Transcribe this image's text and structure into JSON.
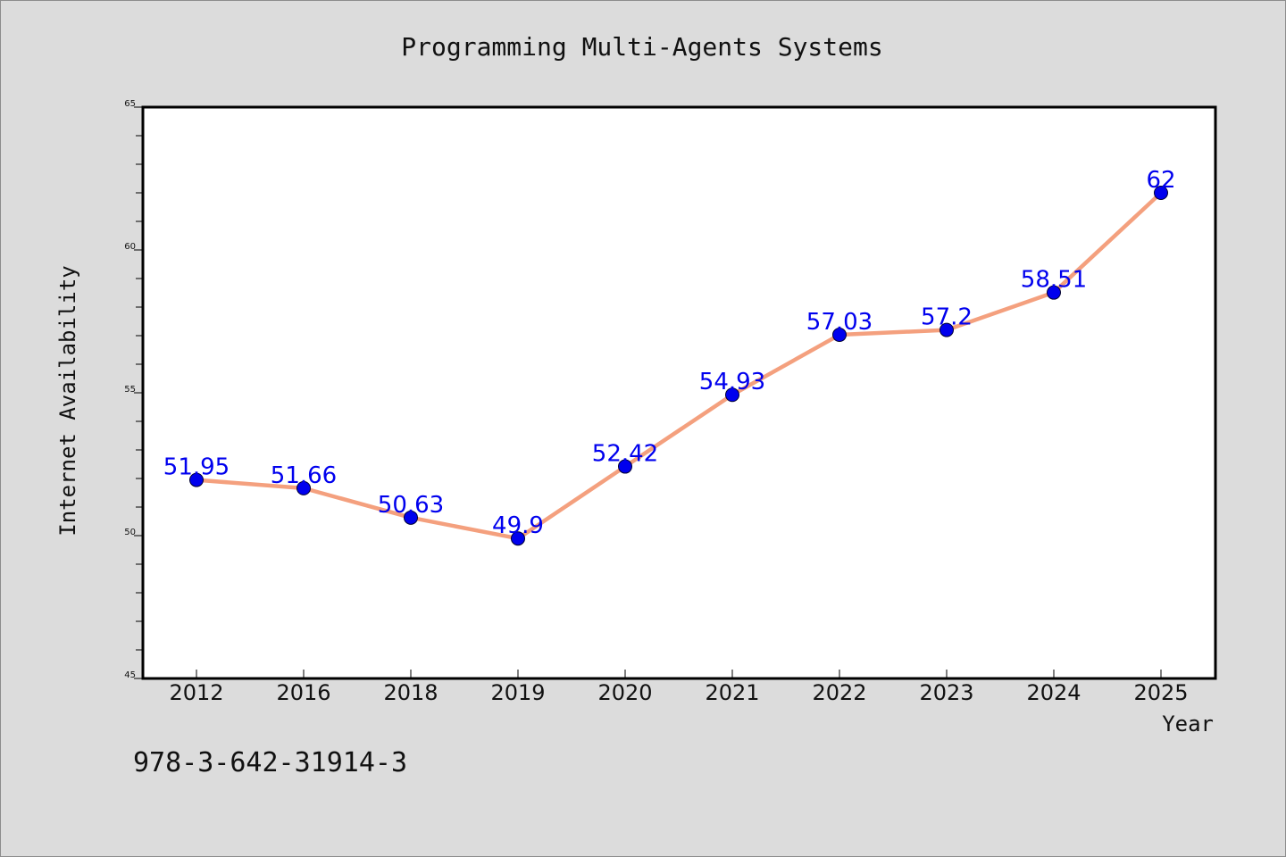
{
  "chart_data": {
    "type": "line",
    "title": "Programming Multi-Agents Systems",
    "xlabel": "Year",
    "ylabel": "Internet Availability",
    "categories": [
      "2012",
      "2016",
      "2018",
      "2019",
      "2020",
      "2021",
      "2022",
      "2023",
      "2024",
      "2025"
    ],
    "values": [
      51.95,
      51.66,
      50.63,
      49.9,
      52.42,
      54.93,
      57.03,
      57.2,
      58.51,
      62
    ],
    "data_labels": [
      "51.95",
      "51.66",
      "50.63",
      "49.9",
      "52.42",
      "54.93",
      "57.03",
      "57.2",
      "58.51",
      "62"
    ],
    "ylim": [
      45,
      65
    ],
    "yticks": [
      "45",
      "50",
      "55",
      "60",
      "65"
    ],
    "grid": false,
    "line_color": "#f4a07e",
    "marker_color": "#0000ee",
    "label_color": "#0000ee"
  },
  "footer": {
    "isbn": "978-3-642-31914-3"
  }
}
